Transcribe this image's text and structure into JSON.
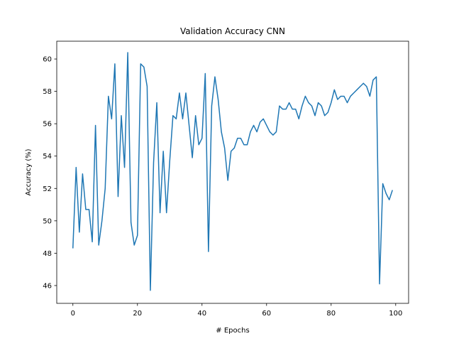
{
  "chart_data": {
    "type": "line",
    "title": "Validation Accuracy CNN",
    "xlabel": "# Epochs",
    "ylabel": "Accuracy (%)",
    "xlim": [
      -5,
      104
    ],
    "ylim": [
      44.9,
      61.1
    ],
    "xticks": [
      0,
      20,
      40,
      60,
      80,
      100
    ],
    "yticks": [
      46,
      48,
      50,
      52,
      54,
      56,
      58,
      60
    ],
    "grid": false,
    "series": [
      {
        "color": "#1f77b4",
        "x": [
          0,
          1,
          2,
          3,
          4,
          5,
          6,
          7,
          8,
          9,
          10,
          11,
          12,
          13,
          14,
          15,
          16,
          17,
          18,
          19,
          20,
          21,
          22,
          23,
          24,
          25,
          26,
          27,
          28,
          29,
          30,
          31,
          32,
          33,
          34,
          35,
          36,
          37,
          38,
          39,
          40,
          41,
          42,
          43,
          44,
          45,
          46,
          47,
          48,
          49,
          50,
          51,
          52,
          53,
          54,
          55,
          56,
          57,
          58,
          59,
          60,
          61,
          62,
          63,
          64,
          65,
          66,
          67,
          68,
          69,
          70,
          71,
          72,
          73,
          74,
          75,
          76,
          77,
          78,
          79,
          80,
          81,
          82,
          83,
          84,
          85,
          86,
          87,
          88,
          89,
          90,
          91,
          92,
          93,
          94,
          95,
          96,
          97,
          98,
          99
        ],
        "values": [
          48.3,
          53.3,
          49.3,
          52.9,
          50.7,
          50.7,
          48.7,
          55.9,
          48.5,
          50.0,
          52.0,
          57.7,
          56.3,
          59.7,
          51.5,
          56.5,
          53.3,
          60.4,
          49.9,
          48.5,
          49.1,
          59.7,
          59.5,
          58.3,
          45.7,
          53.6,
          57.3,
          50.5,
          54.3,
          50.5,
          53.7,
          56.5,
          56.3,
          57.9,
          56.3,
          57.9,
          55.9,
          53.9,
          56.5,
          54.7,
          55.1,
          59.1,
          48.1,
          57.1,
          58.9,
          57.5,
          55.5,
          54.5,
          52.5,
          54.3,
          54.5,
          55.1,
          55.1,
          54.7,
          54.7,
          55.5,
          55.9,
          55.5,
          56.1,
          56.3,
          55.9,
          55.5,
          55.3,
          55.5,
          57.1,
          56.9,
          56.9,
          57.3,
          56.9,
          56.9,
          56.3,
          57.1,
          57.7,
          57.3,
          57.1,
          56.5,
          57.3,
          57.1,
          56.5,
          56.7,
          57.3,
          58.1,
          57.5,
          57.7,
          57.7,
          57.3,
          57.7,
          57.9,
          58.1,
          58.3,
          58.5,
          58.3,
          57.7,
          58.7,
          58.9,
          46.1,
          52.3,
          51.7,
          51.3,
          51.9
        ]
      }
    ]
  }
}
